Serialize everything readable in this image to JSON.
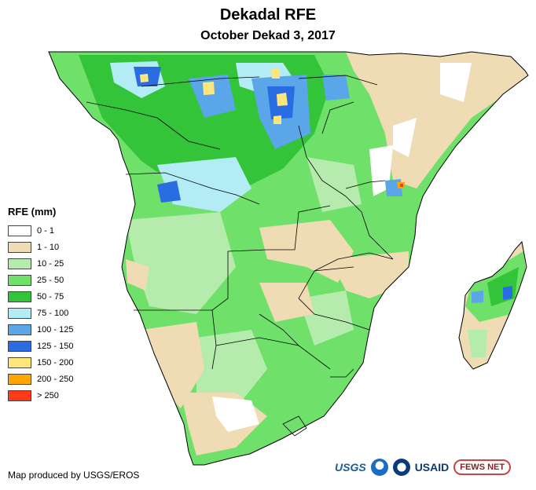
{
  "title": "Dekadal RFE",
  "subtitle": "October Dekad 3, 2017",
  "legend": {
    "title": "RFE (mm)",
    "items": [
      {
        "label": "0 - 1",
        "color": "#ffffff"
      },
      {
        "label": "1 - 10",
        "color": "#efdcb5"
      },
      {
        "label": "10 - 25",
        "color": "#b5ecad"
      },
      {
        "label": "25 - 50",
        "color": "#6fe06a"
      },
      {
        "label": "50 - 75",
        "color": "#33c43a"
      },
      {
        "label": "75 - 100",
        "color": "#b3ecf5"
      },
      {
        "label": "100 - 125",
        "color": "#5aa6e8"
      },
      {
        "label": "125 - 150",
        "color": "#2a6de2"
      },
      {
        "label": "150 - 200",
        "color": "#ffe67a"
      },
      {
        "label": "200 - 250",
        "color": "#ffa500"
      },
      {
        "label": "> 250",
        "color": "#ff3a1a"
      }
    ]
  },
  "credit": "Map produced by USGS/EROS",
  "logos": {
    "usgs": "USGS",
    "usaid": "USAID",
    "fews": "FEWS NET"
  }
}
